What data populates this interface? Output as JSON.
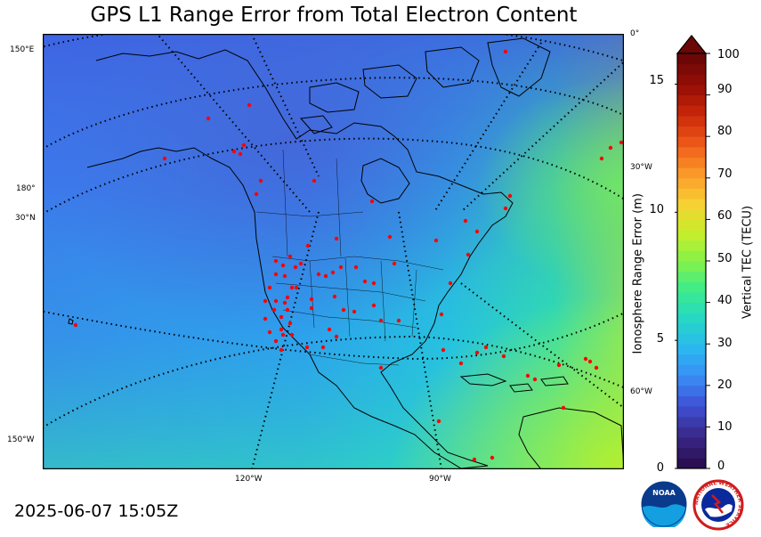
{
  "title": "GPS L1 Range Error from Total Electron Content",
  "timestamp": "2025-06-07 15:05Z",
  "map": {
    "edge_labels": [
      "150°E",
      "180°",
      "30°N",
      "150°W",
      "0°",
      "30°W",
      "60°W"
    ],
    "bottom_labels": [
      "120°W",
      "90°W"
    ],
    "station_color": "#ff0000",
    "graticule_color": "#000000"
  },
  "colorbar": {
    "label": "Vertical TEC (TECU)",
    "ticks": [
      "0",
      "10",
      "20",
      "30",
      "40",
      "50",
      "60",
      "70",
      "80",
      "90",
      "100"
    ],
    "range_axis_label": "Ionosphere Range Error (m)",
    "range_ticks": [
      "0",
      "5",
      "10",
      "15"
    ],
    "colors": [
      "#2b0f52",
      "#3a2a8c",
      "#3f51d6",
      "#3a8df5",
      "#2bb8f0",
      "#25d8c5",
      "#3ceb8c",
      "#85f249",
      "#c8ee2a",
      "#f7d033",
      "#fb9a2a",
      "#f05d1a",
      "#cc2a0a",
      "#9a0f06",
      "#6b0707"
    ]
  },
  "logos": {
    "noaa": "NOAA",
    "nws_ring": "NATIONAL WEATHER SERVICE"
  }
}
